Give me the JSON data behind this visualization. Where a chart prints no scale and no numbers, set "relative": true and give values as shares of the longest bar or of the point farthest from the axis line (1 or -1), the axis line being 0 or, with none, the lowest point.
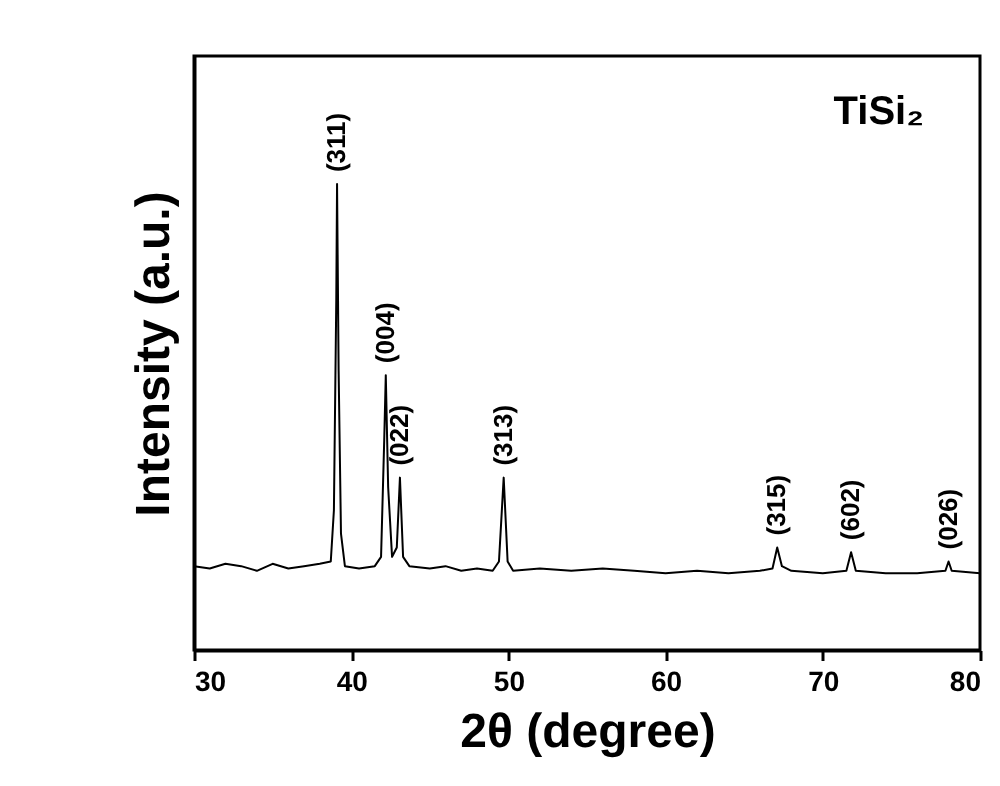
{
  "chart_data": {
    "type": "line",
    "relative": true,
    "xlabel": "2θ (degree)",
    "ylabel": "Intensity (a.u.)",
    "xlim": [
      30,
      80
    ],
    "xticks": [
      30,
      40,
      50,
      60,
      70,
      80
    ],
    "tick_labels": "x",
    "grid": false,
    "series": [
      {
        "color": "#000000",
        "x": [
          30,
          31,
          32,
          33,
          34,
          35,
          36,
          37,
          38,
          38.7,
          38.9,
          39.05,
          39.1,
          39.2,
          39.35,
          39.6,
          40.5,
          41.5,
          41.9,
          42.1,
          42.2,
          42.35,
          42.6,
          42.9,
          43.1,
          43.3,
          43.7,
          45,
          46,
          47,
          48,
          49,
          49.4,
          49.7,
          49.95,
          50.3,
          52,
          54,
          56,
          58,
          60,
          62,
          64,
          66,
          66.8,
          67.1,
          67.4,
          68,
          70,
          71.5,
          71.8,
          72.1,
          74,
          76,
          77.8,
          78,
          78.2,
          80
        ],
        "values": [
          0.18,
          0.175,
          0.185,
          0.18,
          0.17,
          0.185,
          0.175,
          0.18,
          0.185,
          0.19,
          0.3,
          0.75,
          1,
          0.6,
          0.25,
          0.18,
          0.175,
          0.18,
          0.2,
          0.45,
          0.59,
          0.35,
          0.2,
          0.22,
          0.37,
          0.2,
          0.18,
          0.175,
          0.18,
          0.17,
          0.175,
          0.17,
          0.19,
          0.37,
          0.19,
          0.17,
          0.175,
          0.17,
          0.175,
          0.17,
          0.165,
          0.17,
          0.165,
          0.17,
          0.175,
          0.22,
          0.18,
          0.17,
          0.165,
          0.17,
          0.21,
          0.17,
          0.165,
          0.165,
          0.17,
          0.19,
          0.17,
          0.165
        ]
      }
    ],
    "annotations": [
      "TiSi₂",
      {
        "text": "(311)",
        "x": 39.1,
        "y": 1
      },
      {
        "text": "(004)",
        "x": 42.2,
        "y": 0.59
      },
      {
        "text": "(022)",
        "x": 43.1,
        "y": 0.37
      },
      {
        "text": "(313)",
        "x": 49.7,
        "y": 0.37
      },
      {
        "text": "(315)",
        "x": 67.1,
        "y": 0.22
      },
      {
        "text": "(602)",
        "x": 71.8,
        "y": 0.21
      },
      {
        "text": "(026)",
        "x": 78,
        "y": 0.19
      }
    ]
  }
}
